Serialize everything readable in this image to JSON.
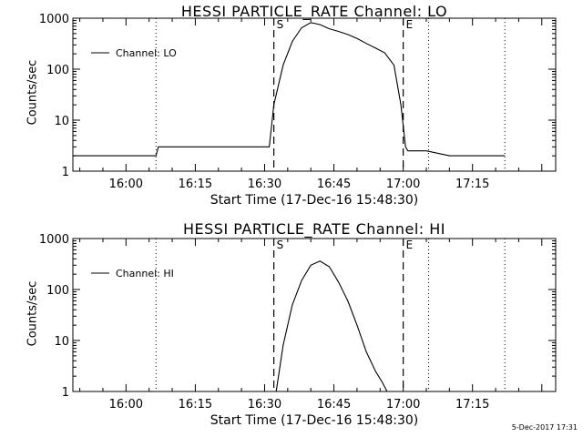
{
  "footer": "5-Dec-2017 17:31",
  "chart_data": [
    {
      "type": "line",
      "title": "HESSI PARTICLE_RATE Channel: LO",
      "xlabel": "Start Time (17-Dec-16 15:48:30)",
      "ylabel": "Counts/sec",
      "yscale": "log",
      "ylim": [
        1,
        1000
      ],
      "xlim": [
        "15:48:30",
        "17:33:00"
      ],
      "xticks": [
        "16:00",
        "16:15",
        "16:30",
        "16:45",
        "17:00",
        "17:15"
      ],
      "yticks": [
        "1",
        "10",
        "100",
        "1000"
      ],
      "legend": {
        "label": "Channel: LO",
        "placement": "top-left"
      },
      "markers": [
        {
          "label": "S",
          "time": "16:32:00",
          "style": "dashed"
        },
        {
          "label": "E",
          "time": "17:00:00",
          "style": "dashed"
        }
      ],
      "dotted_lines": [
        "16:06:30",
        "17:05:30",
        "17:22:00"
      ],
      "series": [
        {
          "x": [
            "15:48:30",
            "15:55:00",
            "16:00:00",
            "16:06:30",
            "16:07:00",
            "16:20:00",
            "16:31:00",
            "16:32:00",
            "16:34:00",
            "16:36:00",
            "16:38:00",
            "16:40:00",
            "16:42:00",
            "16:44:00",
            "16:46:00",
            "16:48:00",
            "16:50:00",
            "16:52:00",
            "16:54:00",
            "16:56:00",
            "16:58:00",
            "16:59:30",
            "17:00:30",
            "17:01:00",
            "17:05:00",
            "17:10:00",
            "17:15:00",
            "17:22:00"
          ],
          "y": [
            2.0,
            2.0,
            2.0,
            2.0,
            3.0,
            3.0,
            3.0,
            20,
            120,
            350,
            650,
            820,
            750,
            620,
            550,
            480,
            400,
            320,
            260,
            210,
            120,
            20,
            3.0,
            2.5,
            2.5,
            2.0,
            2.0,
            2.0
          ]
        }
      ]
    },
    {
      "type": "line",
      "title": "HESSI PARTICLE_RATE Channel: HI",
      "xlabel": "Start Time (17-Dec-16 15:48:30)",
      "ylabel": "Counts/sec",
      "yscale": "log",
      "ylim": [
        1,
        1000
      ],
      "xlim": [
        "15:48:30",
        "17:33:00"
      ],
      "xticks": [
        "16:00",
        "16:15",
        "16:30",
        "16:45",
        "17:00",
        "17:15"
      ],
      "yticks": [
        "1",
        "10",
        "100",
        "1000"
      ],
      "legend": {
        "label": "Channel: HI",
        "placement": "top-left"
      },
      "markers": [
        {
          "label": "S",
          "time": "16:32:00",
          "style": "dashed"
        },
        {
          "label": "E",
          "time": "17:00:00",
          "style": "dashed"
        }
      ],
      "dotted_lines": [
        "16:06:30",
        "17:05:30",
        "17:22:00"
      ],
      "series": [
        {
          "x": [
            "16:32:30",
            "16:34:00",
            "16:36:00",
            "16:38:00",
            "16:40:00",
            "16:42:00",
            "16:44:00",
            "16:46:00",
            "16:48:00",
            "16:50:00",
            "16:52:00",
            "16:54:00",
            "16:55:30",
            "16:56:30"
          ],
          "y": [
            1.0,
            8,
            50,
            150,
            300,
            360,
            280,
            140,
            60,
            20,
            6,
            2.5,
            1.5,
            1.0
          ]
        }
      ]
    }
  ]
}
